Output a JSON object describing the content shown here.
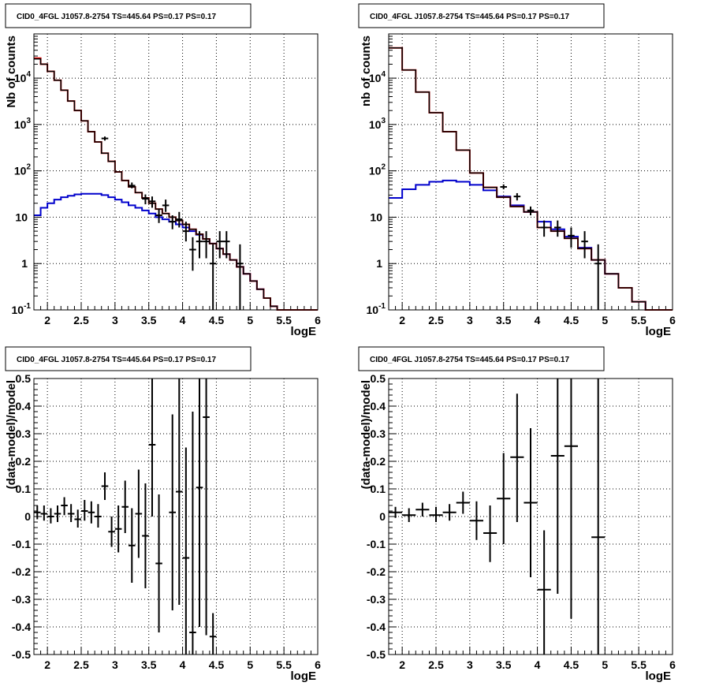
{
  "chart_data": [
    {
      "id": "p1",
      "type": "histogram",
      "title": "CID0_4FGL J1057.8-2754 TS=445.64 PS=0.17 PS=0.17",
      "xlabel": "logE",
      "ylabel": "Nb of counts",
      "xlim": [
        1.8,
        6.0
      ],
      "ylim": [
        0.1,
        90000
      ],
      "yscale": "log",
      "xticks": [
        "2",
        "2.5",
        "3",
        "3.5",
        "4",
        "4.5",
        "5",
        "5.5",
        "6"
      ],
      "yticks": [
        "10^-1",
        "1",
        "10",
        "10^2",
        "10^3",
        "10^4"
      ],
      "grid": true,
      "bin_edges": [
        1.8,
        1.9,
        2.0,
        2.1,
        2.2,
        2.3,
        2.4,
        2.5,
        2.6,
        2.7,
        2.8,
        2.9,
        3.0,
        3.1,
        3.2,
        3.3,
        3.4,
        3.5,
        3.6,
        3.7,
        3.8,
        3.9,
        4.0,
        4.1,
        4.2,
        4.3,
        4.4,
        4.5,
        4.6,
        4.7,
        4.8,
        4.9,
        5.0,
        5.1,
        5.2,
        5.3,
        5.4,
        5.5,
        5.6,
        5.7,
        5.8,
        5.9,
        6.0
      ],
      "series": [
        {
          "color": "#0000cc",
          "values": [
            11,
            16,
            20,
            24,
            27,
            29,
            31,
            32,
            32,
            32,
            30,
            27,
            24,
            21,
            18,
            16,
            14,
            12,
            10,
            9,
            8,
            7,
            6,
            5,
            4.2,
            3.4,
            2.7,
            2.1,
            1.6,
            1.2,
            0.85,
            0.6,
            0.42,
            0.28,
            0.18,
            0.12,
            0.1,
            0.1,
            0.1,
            0.1,
            0.1,
            0.1
          ]
        },
        {
          "color": "#dd0000",
          "values": [
            27000,
            20000,
            14000,
            9000,
            5500,
            3200,
            2000,
            1200,
            700,
            420,
            240,
            160,
            95,
            62,
            45,
            34,
            26,
            20,
            15,
            12,
            10,
            8.5,
            7,
            5.5,
            4.3,
            3.4,
            2.7,
            2.1,
            1.6,
            1.2,
            0.85,
            0.6,
            0.42,
            0.28,
            0.18,
            0.12,
            0.1,
            0.1,
            0.1,
            0.1,
            0.1,
            0.1
          ]
        },
        {
          "color": "#000000",
          "values": [
            26000,
            20000,
            14000,
            9000,
            5500,
            3200,
            2000,
            1200,
            700,
            420,
            240,
            160,
            95,
            62,
            45,
            34,
            26,
            20,
            15,
            12,
            10,
            8.5,
            7,
            5.5,
            4.3,
            3.4,
            2.7,
            2.1,
            1.6,
            1.2,
            0.85,
            0.6,
            0.42,
            0.28,
            0.18,
            0.12,
            0.1,
            0.1,
            0.1,
            0.1,
            0.1,
            0.1
          ]
        }
      ],
      "points": [
        {
          "x": 2.85,
          "y": 500,
          "lo": 450,
          "hi": 550
        },
        {
          "x": 3.25,
          "y": 48,
          "lo": 42,
          "hi": 56
        },
        {
          "x": 3.45,
          "y": 25,
          "lo": 19,
          "hi": 31
        },
        {
          "x": 3.55,
          "y": 22,
          "lo": 16,
          "hi": 28
        },
        {
          "x": 3.65,
          "y": 11,
          "lo": 7.5,
          "hi": 15
        },
        {
          "x": 3.75,
          "y": 18,
          "lo": 13,
          "hi": 24
        },
        {
          "x": 3.85,
          "y": 8,
          "lo": 5.5,
          "hi": 11
        },
        {
          "x": 3.95,
          "y": 9,
          "lo": 6,
          "hi": 13
        },
        {
          "x": 4.05,
          "y": 5,
          "lo": 3,
          "hi": 8
        },
        {
          "x": 4.15,
          "y": 2,
          "lo": 0.7,
          "hi": 3.7
        },
        {
          "x": 4.25,
          "y": 3,
          "lo": 1.3,
          "hi": 5
        },
        {
          "x": 4.35,
          "y": 3,
          "lo": 1.3,
          "hi": 5
        },
        {
          "x": 4.45,
          "y": 1,
          "lo": 0.1,
          "hi": 2.6
        },
        {
          "x": 4.55,
          "y": 3,
          "lo": 1.3,
          "hi": 5
        },
        {
          "x": 4.65,
          "y": 3,
          "lo": 1.3,
          "hi": 5
        },
        {
          "x": 4.85,
          "y": 1,
          "lo": 0.1,
          "hi": 2.6
        }
      ]
    },
    {
      "id": "p2",
      "type": "histogram",
      "title": "CID0_4FGL J1057.8-2754 TS=445.64 PS=0.17 PS=0.17",
      "xlabel": "logE",
      "ylabel": "nb of counts",
      "xlim": [
        1.8,
        6.0
      ],
      "ylim": [
        0.1,
        90000
      ],
      "yscale": "log",
      "xticks": [
        "2",
        "2.5",
        "3",
        "3.5",
        "4",
        "4.5",
        "5",
        "5.5",
        "6"
      ],
      "yticks": [
        "10^-1",
        "1",
        "10",
        "10^2",
        "10^3",
        "10^4"
      ],
      "grid": true,
      "bin_edges": [
        1.8,
        2.0,
        2.2,
        2.4,
        2.6,
        2.8,
        3.0,
        3.2,
        3.4,
        3.6,
        3.8,
        4.0,
        4.2,
        4.4,
        4.6,
        4.8,
        5.0,
        5.2,
        5.4,
        5.6,
        5.8,
        6.0
      ],
      "series": [
        {
          "color": "#0000cc",
          "values": [
            26,
            40,
            50,
            58,
            62,
            58,
            50,
            38,
            28,
            18,
            13,
            8,
            5.5,
            3.8,
            2.2,
            1.2,
            0.6,
            0.3,
            0.15,
            0.1,
            0.1
          ]
        },
        {
          "color": "#dd0000",
          "values": [
            45000,
            15000,
            5000,
            1800,
            700,
            280,
            90,
            44,
            27,
            17,
            13,
            6,
            5,
            3.5,
            2.1,
            1.2,
            0.6,
            0.3,
            0.15,
            0.1,
            0.1
          ]
        },
        {
          "color": "#000000",
          "values": [
            45000,
            15000,
            5000,
            1800,
            700,
            280,
            90,
            44,
            27,
            17,
            13,
            6,
            5,
            3.5,
            2.1,
            1.2,
            0.6,
            0.3,
            0.15,
            0.1,
            0.1
          ]
        }
      ],
      "points": [
        {
          "x": 3.5,
          "y": 45,
          "lo": 40,
          "hi": 51
        },
        {
          "x": 3.7,
          "y": 28,
          "lo": 23,
          "hi": 33
        },
        {
          "x": 3.9,
          "y": 14,
          "lo": 11,
          "hi": 17
        },
        {
          "x": 4.1,
          "y": 6,
          "lo": 3.8,
          "hi": 8.5
        },
        {
          "x": 4.3,
          "y": 6,
          "lo": 3.8,
          "hi": 8.5
        },
        {
          "x": 4.5,
          "y": 4,
          "lo": 2.2,
          "hi": 6
        },
        {
          "x": 4.7,
          "y": 3,
          "lo": 1.3,
          "hi": 5
        },
        {
          "x": 4.9,
          "y": 1,
          "lo": 0.1,
          "hi": 2.6
        }
      ]
    },
    {
      "id": "p3",
      "type": "scatter",
      "title": "CID0_4FGL J1057.8-2754 TS=445.64 PS=0.17 PS=0.17",
      "xlabel": "logE",
      "ylabel": "(data-model)/model",
      "xlim": [
        1.8,
        6.0
      ],
      "ylim": [
        -0.5,
        0.5
      ],
      "yscale": "linear",
      "xticks": [
        "2",
        "2.5",
        "3",
        "3.5",
        "4",
        "4.5",
        "5",
        "5.5",
        "6"
      ],
      "yticks": [
        "-0.5",
        "-0.4",
        "-0.3",
        "-0.2",
        "-0.1",
        "0",
        "0.1",
        "0.2",
        "0.3",
        "0.4",
        "0.5"
      ],
      "grid": true,
      "points": [
        {
          "x": 1.85,
          "y": 0.015,
          "lo": -0.01,
          "hi": 0.04,
          "xerr": 0.05
        },
        {
          "x": 1.95,
          "y": 0.01,
          "lo": -0.015,
          "hi": 0.04,
          "xerr": 0.05
        },
        {
          "x": 2.05,
          "y": 0.0,
          "lo": -0.025,
          "hi": 0.03,
          "xerr": 0.05
        },
        {
          "x": 2.15,
          "y": 0.01,
          "lo": -0.02,
          "hi": 0.04,
          "xerr": 0.05
        },
        {
          "x": 2.25,
          "y": 0.04,
          "lo": 0.005,
          "hi": 0.07,
          "xerr": 0.05
        },
        {
          "x": 2.35,
          "y": 0.01,
          "lo": -0.02,
          "hi": 0.045,
          "xerr": 0.05
        },
        {
          "x": 2.45,
          "y": -0.01,
          "lo": -0.04,
          "hi": 0.025,
          "xerr": 0.05
        },
        {
          "x": 2.55,
          "y": 0.02,
          "lo": -0.015,
          "hi": 0.06,
          "xerr": 0.05
        },
        {
          "x": 2.65,
          "y": 0.015,
          "lo": -0.025,
          "hi": 0.055,
          "xerr": 0.05
        },
        {
          "x": 2.75,
          "y": 0.0,
          "lo": -0.04,
          "hi": 0.045,
          "xerr": 0.05
        },
        {
          "x": 2.85,
          "y": 0.11,
          "lo": 0.06,
          "hi": 0.16,
          "xerr": 0.05
        },
        {
          "x": 2.95,
          "y": -0.055,
          "lo": -0.11,
          "hi": 0.0,
          "xerr": 0.05
        },
        {
          "x": 3.05,
          "y": -0.045,
          "lo": -0.13,
          "hi": 0.04,
          "xerr": 0.05
        },
        {
          "x": 3.15,
          "y": 0.035,
          "lo": -0.06,
          "hi": 0.13,
          "xerr": 0.05
        },
        {
          "x": 3.25,
          "y": -0.105,
          "lo": -0.24,
          "hi": 0.03,
          "xerr": 0.05
        },
        {
          "x": 3.35,
          "y": 0.01,
          "lo": -0.15,
          "hi": 0.17,
          "xerr": 0.05
        },
        {
          "x": 3.45,
          "y": -0.07,
          "lo": -0.26,
          "hi": 0.12,
          "xerr": 0.05
        },
        {
          "x": 3.55,
          "y": 0.26,
          "lo": 0.0,
          "hi": 0.5,
          "xerr": 0.05
        },
        {
          "x": 3.65,
          "y": -0.17,
          "lo": -0.42,
          "hi": 0.08,
          "xerr": 0.05
        },
        {
          "x": 3.85,
          "y": 0.015,
          "lo": -0.34,
          "hi": 0.37,
          "xerr": 0.05
        },
        {
          "x": 3.95,
          "y": 0.09,
          "lo": -0.32,
          "hi": 0.5,
          "xerr": 0.05
        },
        {
          "x": 4.05,
          "y": -0.15,
          "lo": -0.5,
          "hi": 0.25,
          "xerr": 0.05
        },
        {
          "x": 4.15,
          "y": -0.42,
          "lo": -0.5,
          "hi": 0.38,
          "xerr": 0.05
        },
        {
          "x": 4.25,
          "y": 0.105,
          "lo": -0.4,
          "hi": 0.5,
          "xerr": 0.05
        },
        {
          "x": 4.35,
          "y": 0.36,
          "lo": -0.43,
          "hi": 0.5,
          "xerr": 0.05
        },
        {
          "x": 4.45,
          "y": -0.435,
          "lo": -0.5,
          "hi": -0.35,
          "xerr": 0.05
        }
      ]
    },
    {
      "id": "p4",
      "type": "scatter",
      "title": "CID0_4FGL J1057.8-2754 TS=445.64 PS=0.17 PS=0.17",
      "xlabel": "logE",
      "ylabel": "(data-model)/model",
      "xlim": [
        1.8,
        6.0
      ],
      "ylim": [
        -0.5,
        0.5
      ],
      "yscale": "linear",
      "xticks": [
        "2",
        "2.5",
        "3",
        "3.5",
        "4",
        "4.5",
        "5",
        "5.5",
        "6"
      ],
      "yticks": [
        "-0.5",
        "-0.4",
        "-0.3",
        "-0.2",
        "-0.1",
        "0",
        "0.1",
        "0.2",
        "0.3",
        "0.4",
        "0.5"
      ],
      "grid": true,
      "points": [
        {
          "x": 1.9,
          "y": 0.015,
          "lo": -0.005,
          "hi": 0.035,
          "xerr": 0.1
        },
        {
          "x": 2.1,
          "y": 0.005,
          "lo": -0.02,
          "hi": 0.03,
          "xerr": 0.1
        },
        {
          "x": 2.3,
          "y": 0.025,
          "lo": 0.0,
          "hi": 0.05,
          "xerr": 0.1
        },
        {
          "x": 2.5,
          "y": 0.005,
          "lo": -0.02,
          "hi": 0.035,
          "xerr": 0.1
        },
        {
          "x": 2.7,
          "y": 0.015,
          "lo": -0.015,
          "hi": 0.045,
          "xerr": 0.1
        },
        {
          "x": 2.9,
          "y": 0.05,
          "lo": 0.01,
          "hi": 0.09,
          "xerr": 0.1
        },
        {
          "x": 3.1,
          "y": -0.015,
          "lo": -0.085,
          "hi": 0.055,
          "xerr": 0.1
        },
        {
          "x": 3.3,
          "y": -0.06,
          "lo": -0.165,
          "hi": 0.04,
          "xerr": 0.1
        },
        {
          "x": 3.5,
          "y": 0.065,
          "lo": -0.1,
          "hi": 0.23,
          "xerr": 0.1
        },
        {
          "x": 3.7,
          "y": 0.215,
          "lo": -0.02,
          "hi": 0.445,
          "xerr": 0.1
        },
        {
          "x": 3.9,
          "y": 0.05,
          "lo": -0.22,
          "hi": 0.32,
          "xerr": 0.1
        },
        {
          "x": 4.1,
          "y": -0.265,
          "lo": -0.5,
          "hi": -0.05,
          "xerr": 0.1
        },
        {
          "x": 4.3,
          "y": 0.22,
          "lo": -0.28,
          "hi": 0.5,
          "xerr": 0.1
        },
        {
          "x": 4.5,
          "y": 0.255,
          "lo": -0.37,
          "hi": 0.5,
          "xerr": 0.1
        },
        {
          "x": 4.9,
          "y": -0.075,
          "lo": -0.5,
          "hi": 0.5,
          "xerr": 0.1
        }
      ]
    }
  ]
}
